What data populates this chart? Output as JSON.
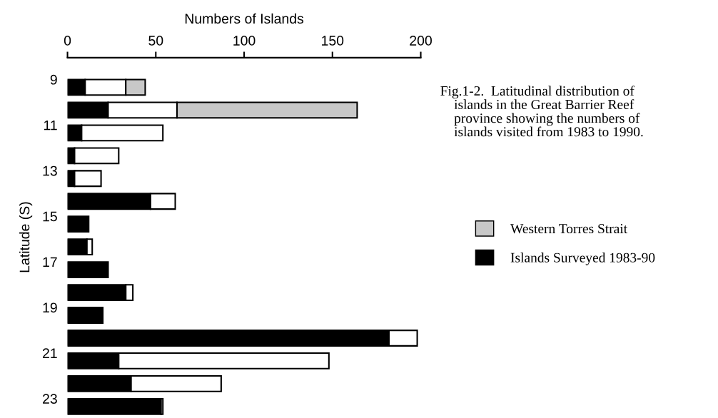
{
  "chart_data": {
    "type": "bar",
    "orientation": "horizontal",
    "stacked": true,
    "xlabel": "Numbers of Islands",
    "ylabel": "Latitude (S)",
    "categories": [
      "9",
      null,
      "11",
      null,
      "13",
      null,
      "15",
      null,
      "17",
      null,
      "19",
      null,
      "21",
      null,
      "23"
    ],
    "series": [
      {
        "name": "Islands Surveyed 1983-90",
        "color": "#000000",
        "values": [
          10,
          23,
          8,
          4,
          4,
          47,
          12,
          11,
          23,
          33,
          20,
          182,
          29,
          36,
          53
        ]
      },
      {
        "color": "#ffffff",
        "values": [
          23,
          39,
          46,
          25,
          15,
          14,
          null,
          3,
          null,
          4,
          null,
          16,
          119,
          51,
          1
        ]
      },
      {
        "name": "Western Torres Strait",
        "color": "#c8c8c8",
        "values": [
          11,
          102,
          null,
          null,
          null,
          null,
          null,
          null,
          null,
          null,
          null,
          null,
          null,
          null,
          null
        ]
      }
    ],
    "xlim": [
      0,
      200
    ],
    "xticks": [
      0,
      50,
      100,
      150,
      200
    ],
    "grid": false,
    "legend": "right",
    "annotations": [
      "Fig.1-2.  Latitudinal distribution of\n    islands in the Great Barrier Reef\n    province showing the numbers of\n    islands visited from 1983 to 1990."
    ]
  }
}
